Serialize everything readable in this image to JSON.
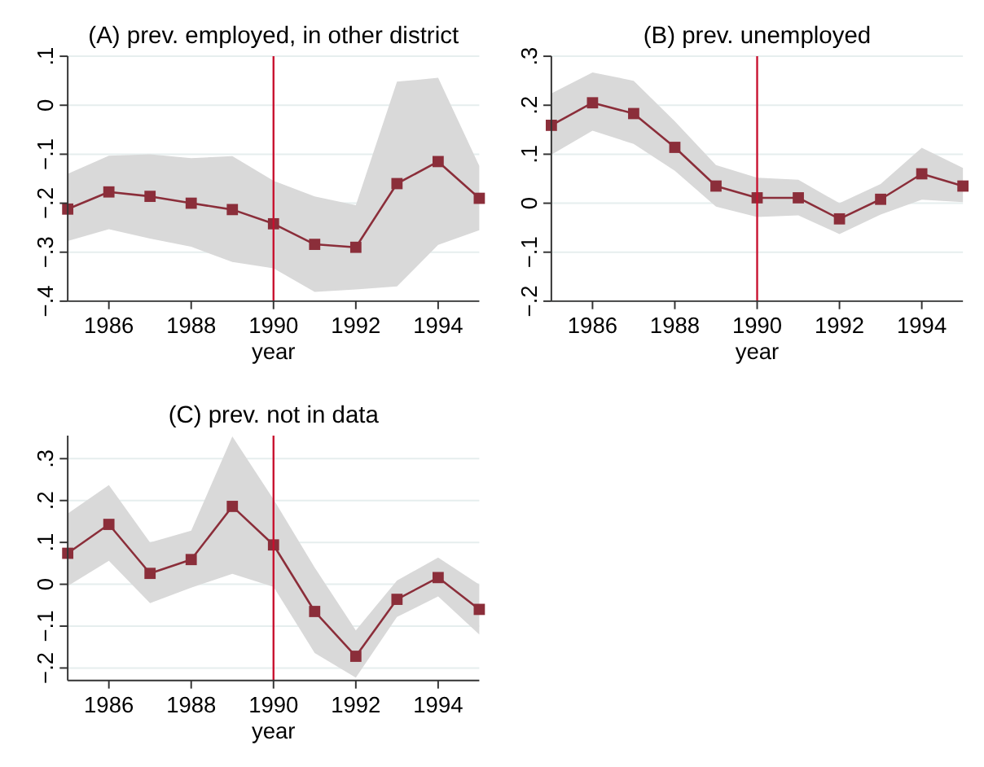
{
  "chart_data": [
    {
      "type": "line",
      "title": "(A) prev. employed, in other district",
      "xlabel": "year",
      "x": [
        1985,
        1986,
        1987,
        1988,
        1989,
        1990,
        1991,
        1992,
        1993,
        1994,
        1995
      ],
      "xlim": [
        1985,
        1995
      ],
      "xticks": [
        1986,
        1988,
        1990,
        1992,
        1994
      ],
      "ylim": [
        -0.4,
        0.1
      ],
      "yticks": [
        {
          "value": -0.4,
          "label": "−.4"
        },
        {
          "value": -0.3,
          "label": "−.3"
        },
        {
          "value": -0.2,
          "label": "−.2"
        },
        {
          "value": -0.1,
          "label": "−.1"
        },
        {
          "value": 0,
          "label": "0"
        },
        {
          "value": 0.1,
          "label": ".1"
        }
      ],
      "grid": "y",
      "marker": "square",
      "ref_lines": [
        {
          "axis": "x",
          "value": 1990,
          "color": "#c8102e"
        }
      ],
      "series": [
        {
          "color": "#8b2e3a",
          "values": [
            -0.212,
            -0.177,
            -0.186,
            -0.2,
            -0.213,
            -0.242,
            -0.284,
            -0.29,
            -0.16,
            -0.115,
            -0.19
          ],
          "lower": [
            -0.277,
            -0.253,
            -0.272,
            -0.289,
            -0.32,
            -0.333,
            -0.381,
            -0.376,
            -0.37,
            -0.285,
            -0.255
          ],
          "upper": [
            -0.14,
            -0.103,
            -0.1,
            -0.108,
            -0.104,
            -0.154,
            -0.186,
            -0.204,
            0.048,
            0.056,
            -0.124
          ]
        }
      ]
    },
    {
      "type": "line",
      "title": "(B) prev. unemployed",
      "xlabel": "year",
      "x": [
        1985,
        1986,
        1987,
        1988,
        1989,
        1990,
        1991,
        1992,
        1993,
        1994,
        1995
      ],
      "xlim": [
        1985,
        1995
      ],
      "xticks": [
        1986,
        1988,
        1990,
        1992,
        1994
      ],
      "ylim": [
        -0.2,
        0.3
      ],
      "yticks": [
        {
          "value": -0.2,
          "label": "−.2"
        },
        {
          "value": -0.1,
          "label": "−.1"
        },
        {
          "value": 0,
          "label": "0"
        },
        {
          "value": 0.1,
          "label": ".1"
        },
        {
          "value": 0.2,
          "label": ".2"
        },
        {
          "value": 0.3,
          "label": ".3"
        }
      ],
      "grid": "y",
      "marker": "square",
      "ref_lines": [
        {
          "axis": "x",
          "value": 1990,
          "color": "#c8102e"
        }
      ],
      "series": [
        {
          "color": "#8b2e3a",
          "values": [
            0.159,
            0.205,
            0.183,
            0.114,
            0.035,
            0.011,
            0.011,
            -0.032,
            0.008,
            0.06,
            0.035
          ],
          "lower": [
            0.099,
            0.148,
            0.121,
            0.066,
            -0.007,
            -0.028,
            -0.025,
            -0.063,
            -0.023,
            0.007,
            0.002
          ],
          "upper": [
            0.224,
            0.267,
            0.25,
            0.167,
            0.078,
            0.052,
            0.048,
            0.0,
            0.039,
            0.113,
            0.072
          ]
        }
      ]
    },
    {
      "type": "line",
      "title": "(C) prev. not in data",
      "xlabel": "year",
      "x": [
        1985,
        1986,
        1987,
        1988,
        1989,
        1990,
        1991,
        1992,
        1993,
        1994,
        1995
      ],
      "xlim": [
        1985,
        1995
      ],
      "xticks": [
        1986,
        1988,
        1990,
        1992,
        1994
      ],
      "ylim": [
        -0.23,
        0.355
      ],
      "yticks": [
        {
          "value": -0.2,
          "label": "−.2"
        },
        {
          "value": -0.1,
          "label": "−.1"
        },
        {
          "value": 0,
          "label": "0"
        },
        {
          "value": 0.1,
          "label": ".1"
        },
        {
          "value": 0.2,
          "label": ".2"
        },
        {
          "value": 0.3,
          "label": ".3"
        }
      ],
      "grid": "y",
      "marker": "square",
      "ref_lines": [
        {
          "axis": "x",
          "value": 1990,
          "color": "#c8102e"
        }
      ],
      "series": [
        {
          "color": "#8b2e3a",
          "values": [
            0.074,
            0.143,
            0.026,
            0.059,
            0.186,
            0.094,
            -0.065,
            -0.172,
            -0.036,
            0.016,
            -0.06
          ],
          "lower": [
            -0.004,
            0.056,
            -0.045,
            -0.008,
            0.025,
            -0.006,
            -0.164,
            -0.223,
            -0.078,
            -0.029,
            -0.12
          ],
          "upper": [
            0.169,
            0.237,
            0.1,
            0.128,
            0.353,
            0.203,
            0.04,
            -0.11,
            0.009,
            0.064,
            -0.001
          ]
        }
      ]
    }
  ]
}
